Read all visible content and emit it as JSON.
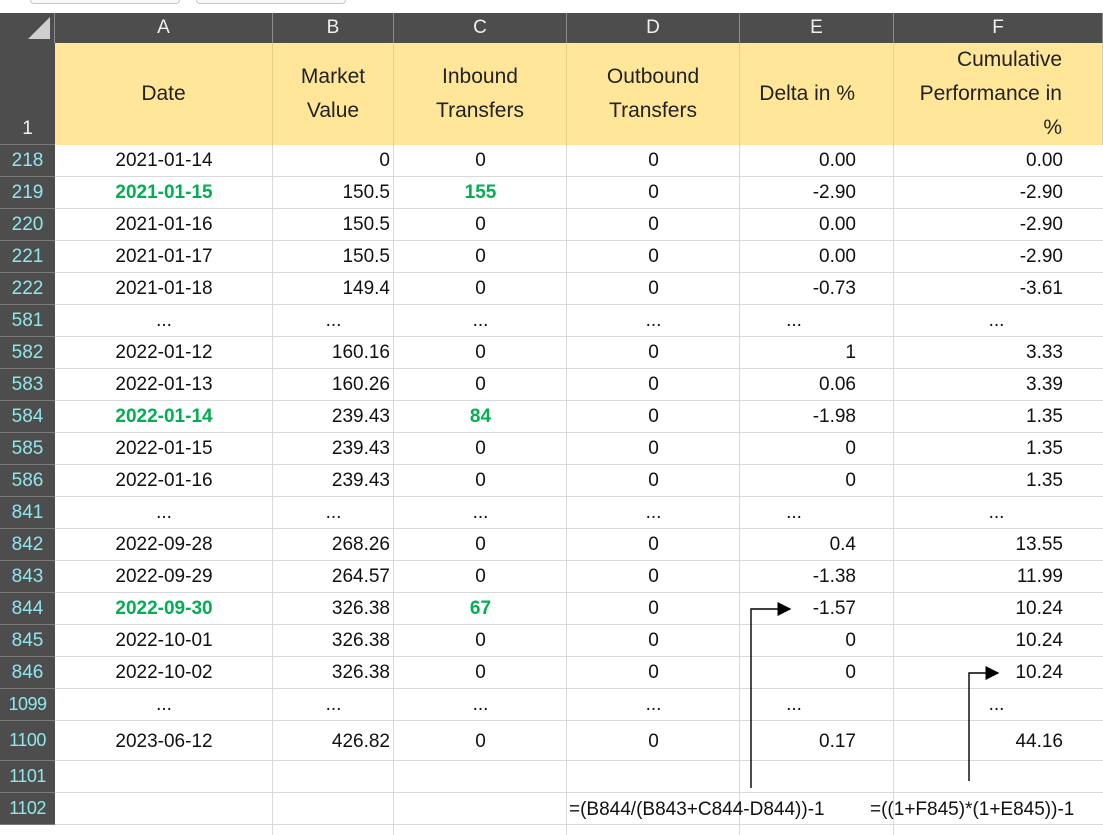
{
  "columns": [
    "A",
    "B",
    "C",
    "D",
    "E",
    "F"
  ],
  "header_row_number": "1",
  "headers": {
    "date": "Date",
    "market_value": [
      "Market",
      "Value"
    ],
    "inbound": [
      "Inbound",
      "Transfers"
    ],
    "outbound": [
      "Outbound",
      "Transfers"
    ],
    "delta": "Delta in %",
    "cumulative": [
      "Cumulative",
      "Performance in",
      "%"
    ]
  },
  "rows": [
    {
      "n": "218",
      "date": "2021-01-14",
      "mv": "0",
      "in": "0",
      "out": "0",
      "delta": "0.00",
      "cum": "0.00",
      "highlight": false
    },
    {
      "n": "219",
      "date": "2021-01-15",
      "mv": "150.5",
      "in": "155",
      "out": "0",
      "delta": "-2.90",
      "cum": "-2.90",
      "highlight": true
    },
    {
      "n": "220",
      "date": "2021-01-16",
      "mv": "150.5",
      "in": "0",
      "out": "0",
      "delta": "0.00",
      "cum": "-2.90",
      "highlight": false
    },
    {
      "n": "221",
      "date": "2021-01-17",
      "mv": "150.5",
      "in": "0",
      "out": "0",
      "delta": "0.00",
      "cum": "-2.90",
      "highlight": false
    },
    {
      "n": "222",
      "date": "2021-01-18",
      "mv": "149.4",
      "in": "0",
      "out": "0",
      "delta": "-0.73",
      "cum": "-3.61",
      "highlight": false
    },
    {
      "n": "581",
      "date": "...",
      "mv": "...",
      "in": "...",
      "out": "...",
      "delta": "...",
      "cum": "...",
      "highlight": false,
      "ellipsis": true
    },
    {
      "n": "582",
      "date": "2022-01-12",
      "mv": "160.16",
      "in": "0",
      "out": "0",
      "delta": "1",
      "cum": "3.33",
      "highlight": false
    },
    {
      "n": "583",
      "date": "2022-01-13",
      "mv": "160.26",
      "in": "0",
      "out": "0",
      "delta": "0.06",
      "cum": "3.39",
      "highlight": false
    },
    {
      "n": "584",
      "date": "2022-01-14",
      "mv": "239.43",
      "in": "84",
      "out": "0",
      "delta": "-1.98",
      "cum": "1.35",
      "highlight": true
    },
    {
      "n": "585",
      "date": "2022-01-15",
      "mv": "239.43",
      "in": "0",
      "out": "0",
      "delta": "0",
      "cum": "1.35",
      "highlight": false
    },
    {
      "n": "586",
      "date": "2022-01-16",
      "mv": "239.43",
      "in": "0",
      "out": "0",
      "delta": "0",
      "cum": "1.35",
      "highlight": false
    },
    {
      "n": "841",
      "date": "...",
      "mv": "...",
      "in": "...",
      "out": "...",
      "delta": "...",
      "cum": "...",
      "highlight": false,
      "ellipsis": true
    },
    {
      "n": "842",
      "date": "2022-09-28",
      "mv": "268.26",
      "in": "0",
      "out": "0",
      "delta": "0.4",
      "cum": "13.55",
      "highlight": false
    },
    {
      "n": "843",
      "date": "2022-09-29",
      "mv": "264.57",
      "in": "0",
      "out": "0",
      "delta": "-1.38",
      "cum": "11.99",
      "highlight": false
    },
    {
      "n": "844",
      "date": "2022-09-30",
      "mv": "326.38",
      "in": "67",
      "out": "0",
      "delta": "-1.57",
      "cum": "10.24",
      "highlight": true
    },
    {
      "n": "845",
      "date": "2022-10-01",
      "mv": "326.38",
      "in": "0",
      "out": "0",
      "delta": "0",
      "cum": "10.24",
      "highlight": false
    },
    {
      "n": "846",
      "date": "2022-10-02",
      "mv": "326.38",
      "in": "0",
      "out": "0",
      "delta": "0",
      "cum": "10.24",
      "highlight": false
    },
    {
      "n": "1099",
      "date": "...",
      "mv": "...",
      "in": "...",
      "out": "...",
      "delta": "...",
      "cum": "...",
      "highlight": false,
      "ellipsis": true
    },
    {
      "n": "1100",
      "date": "2023-06-12",
      "mv": "426.82",
      "in": "0",
      "out": "0",
      "delta": "0.17",
      "cum": "44.16",
      "highlight": false,
      "tall": true
    },
    {
      "n": "1101",
      "date": "",
      "mv": "",
      "in": "",
      "out": "",
      "delta": "",
      "cum": "",
      "highlight": false
    },
    {
      "n": "1102",
      "date": "",
      "mv": "",
      "in": "",
      "out": "",
      "delta": "",
      "cum": "",
      "highlight": false
    }
  ],
  "formulas": {
    "delta": "=(B844/(B843+C844-D844))-1",
    "cumulative": "=((1+F845)*(1+E845))-1"
  },
  "colors": {
    "header_fill": "#ffe699",
    "highlight_text": "#00b050",
    "row_number_text": "#8ee8ee",
    "chrome": "#4d4d4d"
  }
}
